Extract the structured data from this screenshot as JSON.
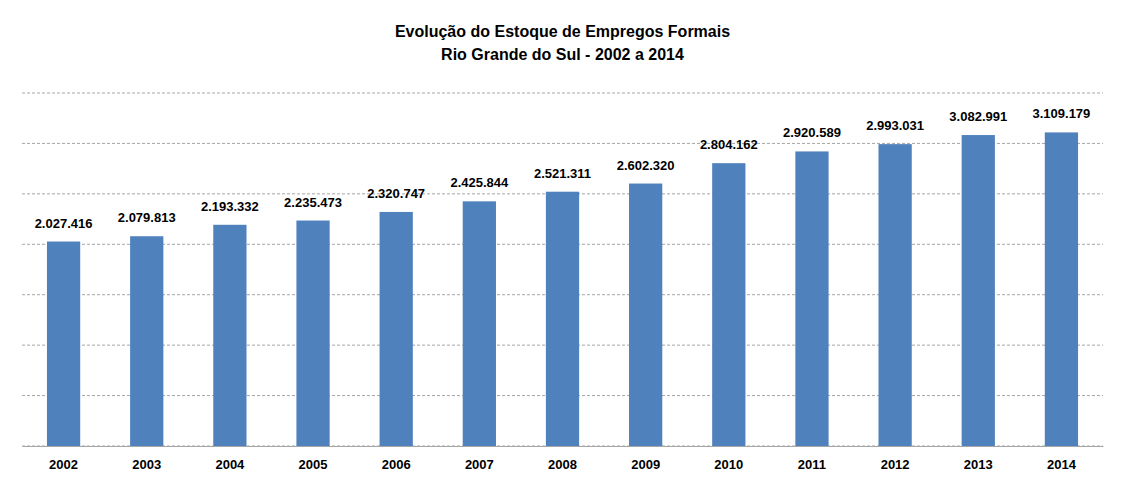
{
  "chart_data": {
    "type": "bar",
    "title": "Evolução do Estoque de Empregos Formais",
    "subtitle": "Rio Grande do Sul - 2002 a 2014",
    "categories": [
      "2002",
      "2003",
      "2004",
      "2005",
      "2006",
      "2007",
      "2008",
      "2009",
      "2010",
      "2011",
      "2012",
      "2013",
      "2014"
    ],
    "values": [
      2027416,
      2079813,
      2193332,
      2235473,
      2320747,
      2425844,
      2521311,
      2602320,
      2804162,
      2920589,
      2993031,
      3082991,
      3109179
    ],
    "value_labels": [
      "2.027.416",
      "2.079.813",
      "2.193.332",
      "2.235.473",
      "2.320.747",
      "2.425.844",
      "2.521.311",
      "2.602.320",
      "2.804.162",
      "2.920.589",
      "2.993.031",
      "3.082.991",
      "3.109.179"
    ],
    "color": "#4f81bd",
    "ylim": [
      0,
      3500000
    ],
    "yticks": [
      0,
      500000,
      1000000,
      1500000,
      2000000,
      2500000,
      3000000,
      3500000
    ],
    "grid": true,
    "data_labels": true,
    "tick_labels": "x"
  }
}
